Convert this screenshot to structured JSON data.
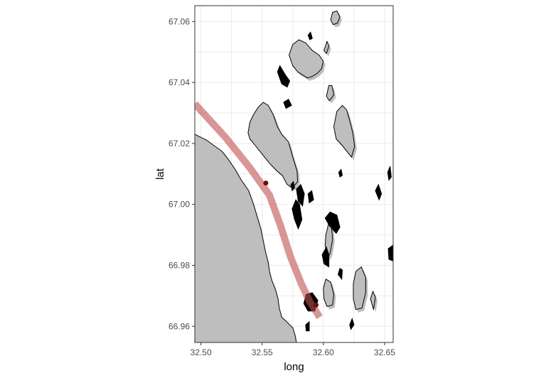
{
  "chart_data": {
    "type": "map",
    "title": "",
    "xlabel": "long",
    "ylabel": "lat",
    "xlim": [
      32.495,
      32.657
    ],
    "ylim": [
      66.9547,
      67.0652
    ],
    "x_ticks": [
      32.5,
      32.55,
      32.6,
      32.65
    ],
    "x_tick_labels": [
      "32.50",
      "32.55",
      "32.60",
      "32.65"
    ],
    "y_ticks": [
      66.96,
      66.98,
      67.0,
      67.02,
      67.04,
      67.06
    ],
    "y_tick_labels": [
      "66.96",
      "66.98",
      "67.00",
      "67.02",
      "67.04",
      "67.06"
    ],
    "grid": true,
    "colors": {
      "land": "#bebebe",
      "outline": "#000000",
      "route": "#c05050",
      "waypoint": "#6b1010"
    },
    "route": [
      {
        "long": 32.495,
        "lat": 67.033
      },
      {
        "long": 32.52,
        "lat": 67.022
      },
      {
        "long": 32.54,
        "lat": 67.012
      },
      {
        "long": 32.556,
        "lat": 67.003
      },
      {
        "long": 32.565,
        "lat": 66.993
      },
      {
        "long": 32.573,
        "lat": 66.983
      },
      {
        "long": 32.582,
        "lat": 66.974
      },
      {
        "long": 32.589,
        "lat": 66.968
      },
      {
        "long": 32.597,
        "lat": 66.963
      }
    ],
    "waypoints": [
      {
        "long": 32.553,
        "lat": 67.007
      },
      {
        "long": 32.594,
        "lat": 66.967
      }
    ],
    "land": [
      {
        "name": "mainland",
        "shadow": false,
        "coords": [
          [
            32.495,
            67.023
          ],
          [
            32.5,
            67.022
          ],
          [
            32.505,
            67.021
          ],
          [
            32.51,
            67.0195
          ],
          [
            32.517,
            67.0175
          ],
          [
            32.522,
            67.015
          ],
          [
            32.528,
            67.0115
          ],
          [
            32.533,
            67.008
          ],
          [
            32.539,
            67.0045
          ],
          [
            32.543,
            67.0
          ],
          [
            32.546,
            66.996
          ],
          [
            32.549,
            66.992
          ],
          [
            32.551,
            66.988
          ],
          [
            32.553,
            66.984
          ],
          [
            32.555,
            66.981
          ],
          [
            32.556,
            66.978
          ],
          [
            32.558,
            66.975
          ],
          [
            32.561,
            66.972
          ],
          [
            32.563,
            66.969
          ],
          [
            32.564,
            66.966
          ],
          [
            32.566,
            66.963
          ],
          [
            32.57,
            66.9615
          ],
          [
            32.575,
            66.9595
          ],
          [
            32.577,
            66.957
          ],
          [
            32.578,
            66.9547
          ],
          [
            32.495,
            66.9547
          ]
        ]
      },
      {
        "name": "large-island",
        "shadow": true,
        "coords": [
          [
            32.5385,
            67.0235
          ],
          [
            32.54,
            67.027
          ],
          [
            32.543,
            67.0295
          ],
          [
            32.547,
            67.032
          ],
          [
            32.551,
            67.0335
          ],
          [
            32.555,
            67.0325
          ],
          [
            32.559,
            67.0295
          ],
          [
            32.5625,
            67.0255
          ],
          [
            32.566,
            67.023
          ],
          [
            32.5715,
            67.0205
          ],
          [
            32.575,
            67.0155
          ],
          [
            32.5785,
            67.011
          ],
          [
            32.579,
            67.0075
          ],
          [
            32.575,
            67.0055
          ],
          [
            32.5705,
            67.0065
          ],
          [
            32.5665,
            67.0095
          ],
          [
            32.562,
            67.011
          ],
          [
            32.556,
            67.0135
          ],
          [
            32.55,
            67.0165
          ],
          [
            32.544,
            67.0195
          ],
          [
            32.54,
            67.0215
          ]
        ]
      },
      {
        "name": "northern-island",
        "shadow": true,
        "coords": [
          [
            32.572,
            67.049
          ],
          [
            32.575,
            67.0525
          ],
          [
            32.58,
            67.054
          ],
          [
            32.5855,
            67.053
          ],
          [
            32.591,
            67.0505
          ],
          [
            32.5965,
            67.049
          ],
          [
            32.6,
            67.047
          ],
          [
            32.5985,
            67.0445
          ],
          [
            32.595,
            67.043
          ],
          [
            32.591,
            67.042
          ],
          [
            32.587,
            67.0415
          ],
          [
            32.583,
            67.0425
          ],
          [
            32.579,
            67.0435
          ],
          [
            32.575,
            67.0455
          ]
        ]
      },
      {
        "name": "east-island",
        "shadow": true,
        "coords": [
          [
            32.6085,
            67.0255
          ],
          [
            32.611,
            67.0305
          ],
          [
            32.6155,
            67.0325
          ],
          [
            32.619,
            67.031
          ],
          [
            32.6215,
            67.0275
          ],
          [
            32.624,
            67.0235
          ],
          [
            32.6255,
            67.019
          ],
          [
            32.623,
            67.0155
          ],
          [
            32.619,
            67.0175
          ],
          [
            32.615,
            67.0195
          ],
          [
            32.6105,
            67.0215
          ]
        ]
      },
      {
        "name": "islet-north-1",
        "shadow": true,
        "coords": [
          [
            32.606,
            67.0605
          ],
          [
            32.6075,
            67.063
          ],
          [
            32.611,
            67.0635
          ],
          [
            32.6135,
            67.0615
          ],
          [
            32.6115,
            67.0595
          ],
          [
            32.608,
            67.059
          ]
        ]
      },
      {
        "name": "islet-north-2",
        "shadow": true,
        "coords": [
          [
            32.6005,
            67.0505
          ],
          [
            32.603,
            67.0535
          ],
          [
            32.6045,
            67.052
          ],
          [
            32.6025,
            67.0495
          ]
        ]
      },
      {
        "name": "islet-mid",
        "shadow": true,
        "coords": [
          [
            32.6025,
            67.0355
          ],
          [
            32.6045,
            67.039
          ],
          [
            32.607,
            67.039
          ],
          [
            32.6085,
            67.036
          ],
          [
            32.605,
            67.034
          ]
        ]
      },
      {
        "name": "southeast-island",
        "shadow": true,
        "coords": [
          [
            32.6245,
            66.974
          ],
          [
            32.6265,
            66.978
          ],
          [
            32.631,
            66.9795
          ],
          [
            32.6345,
            66.976
          ],
          [
            32.6345,
            66.971
          ],
          [
            32.6315,
            66.966
          ],
          [
            32.6265,
            66.9655
          ],
          [
            32.6245,
            66.969
          ]
        ]
      },
      {
        "name": "south-island",
        "shadow": true,
        "coords": [
          [
            32.6,
            66.9725
          ],
          [
            32.602,
            66.9755
          ],
          [
            32.606,
            66.9745
          ],
          [
            32.6085,
            66.9705
          ],
          [
            32.6075,
            66.967
          ],
          [
            32.603,
            66.9665
          ],
          [
            32.6005,
            66.969
          ]
        ]
      },
      {
        "name": "middle-group",
        "shadow": true,
        "coords": [
          [
            32.603,
            66.9915
          ],
          [
            32.605,
            66.995
          ],
          [
            32.6065,
            66.9935
          ],
          [
            32.6075,
            66.9885
          ],
          [
            32.6055,
            66.984
          ],
          [
            32.6035,
            66.9825
          ],
          [
            32.6015,
            66.9865
          ],
          [
            32.602,
            66.99
          ]
        ]
      },
      {
        "name": "islet-south-east",
        "shadow": true,
        "coords": [
          [
            32.6385,
            66.969
          ],
          [
            32.6405,
            66.9715
          ],
          [
            32.6425,
            66.9695
          ],
          [
            32.641,
            66.9655
          ]
        ]
      }
    ],
    "rocks": [
      [
        [
          32.5625,
          67.0435
        ],
        [
          32.5645,
          67.0455
        ],
        [
          32.569,
          67.0425
        ],
        [
          32.5725,
          67.0405
        ],
        [
          32.5705,
          67.0385
        ],
        [
          32.566,
          67.0395
        ]
      ],
      [
        [
          32.5675,
          67.0335
        ],
        [
          32.5715,
          67.0345
        ],
        [
          32.574,
          67.0325
        ],
        [
          32.5695,
          67.0315
        ]
      ],
      [
        [
          32.578,
          67.005
        ],
        [
          32.5815,
          67.0065
        ],
        [
          32.5845,
          67.0035
        ],
        [
          32.583,
          66.9995
        ],
        [
          32.5795,
          67.001
        ]
      ],
      [
        [
          32.5875,
          67.0035
        ],
        [
          32.5905,
          67.0045
        ],
        [
          32.592,
          67.0015
        ],
        [
          32.5885,
          67.0005
        ]
      ],
      [
        [
          32.5745,
          66.9985
        ],
        [
          32.5775,
          67.0015
        ],
        [
          32.5805,
          67.0
        ],
        [
          32.5825,
          66.995
        ],
        [
          32.5795,
          66.992
        ],
        [
          32.5765,
          66.995
        ]
      ],
      [
        [
          32.6015,
          66.9955
        ],
        [
          32.6055,
          66.9975
        ],
        [
          32.611,
          66.9965
        ],
        [
          32.6135,
          66.9925
        ],
        [
          32.6105,
          66.9905
        ],
        [
          32.605,
          66.993
        ]
      ],
      [
        [
          32.6425,
          67.0045
        ],
        [
          32.645,
          67.0065
        ],
        [
          32.6475,
          67.0035
        ],
        [
          32.6455,
          67.0015
        ]
      ],
      [
        [
          32.6525,
          67.0105
        ],
        [
          32.6545,
          67.0125
        ],
        [
          32.6555,
          67.009
        ],
        [
          32.6535,
          67.008
        ]
      ],
      [
        [
          32.653,
          66.9855
        ],
        [
          32.6565,
          66.9865
        ],
        [
          32.6565,
          66.9815
        ],
        [
          32.6535,
          66.982
        ]
      ],
      [
        [
          32.599,
          66.9835
        ],
        [
          32.6025,
          66.986
        ],
        [
          32.6045,
          66.9835
        ],
        [
          32.6045,
          66.9795
        ],
        [
          32.6005,
          66.9805
        ]
      ],
      [
        [
          32.612,
          66.977
        ],
        [
          32.6135,
          66.979
        ],
        [
          32.6155,
          66.9785
        ],
        [
          32.615,
          66.9755
        ]
      ],
      [
        [
          32.584,
          66.9675
        ],
        [
          32.586,
          66.9705
        ],
        [
          32.591,
          66.971
        ],
        [
          32.5955,
          66.9685
        ],
        [
          32.593,
          66.965
        ],
        [
          32.5875,
          66.965
        ]
      ],
      [
        [
          32.5855,
          66.9605
        ],
        [
          32.5885,
          66.9615
        ],
        [
          32.5885,
          66.9585
        ],
        [
          32.586,
          66.9585
        ]
      ],
      [
        [
          32.6215,
          66.9605
        ],
        [
          32.6235,
          66.9625
        ],
        [
          32.625,
          66.9605
        ],
        [
          32.6225,
          66.959
        ]
      ],
      [
        [
          32.6125,
          67.0105
        ],
        [
          32.6145,
          67.0115
        ],
        [
          32.6155,
          67.0095
        ],
        [
          32.6135,
          67.009
        ]
      ],
      [
        [
          32.5735,
          67.0065
        ],
        [
          32.5755,
          67.0075
        ],
        [
          32.5765,
          67.0055
        ],
        [
          32.5745,
          67.0045
        ]
      ],
      [
        [
          32.5875,
          67.0555
        ],
        [
          32.5895,
          67.0565
        ],
        [
          32.591,
          67.0545
        ],
        [
          32.589,
          67.054
        ]
      ]
    ]
  }
}
